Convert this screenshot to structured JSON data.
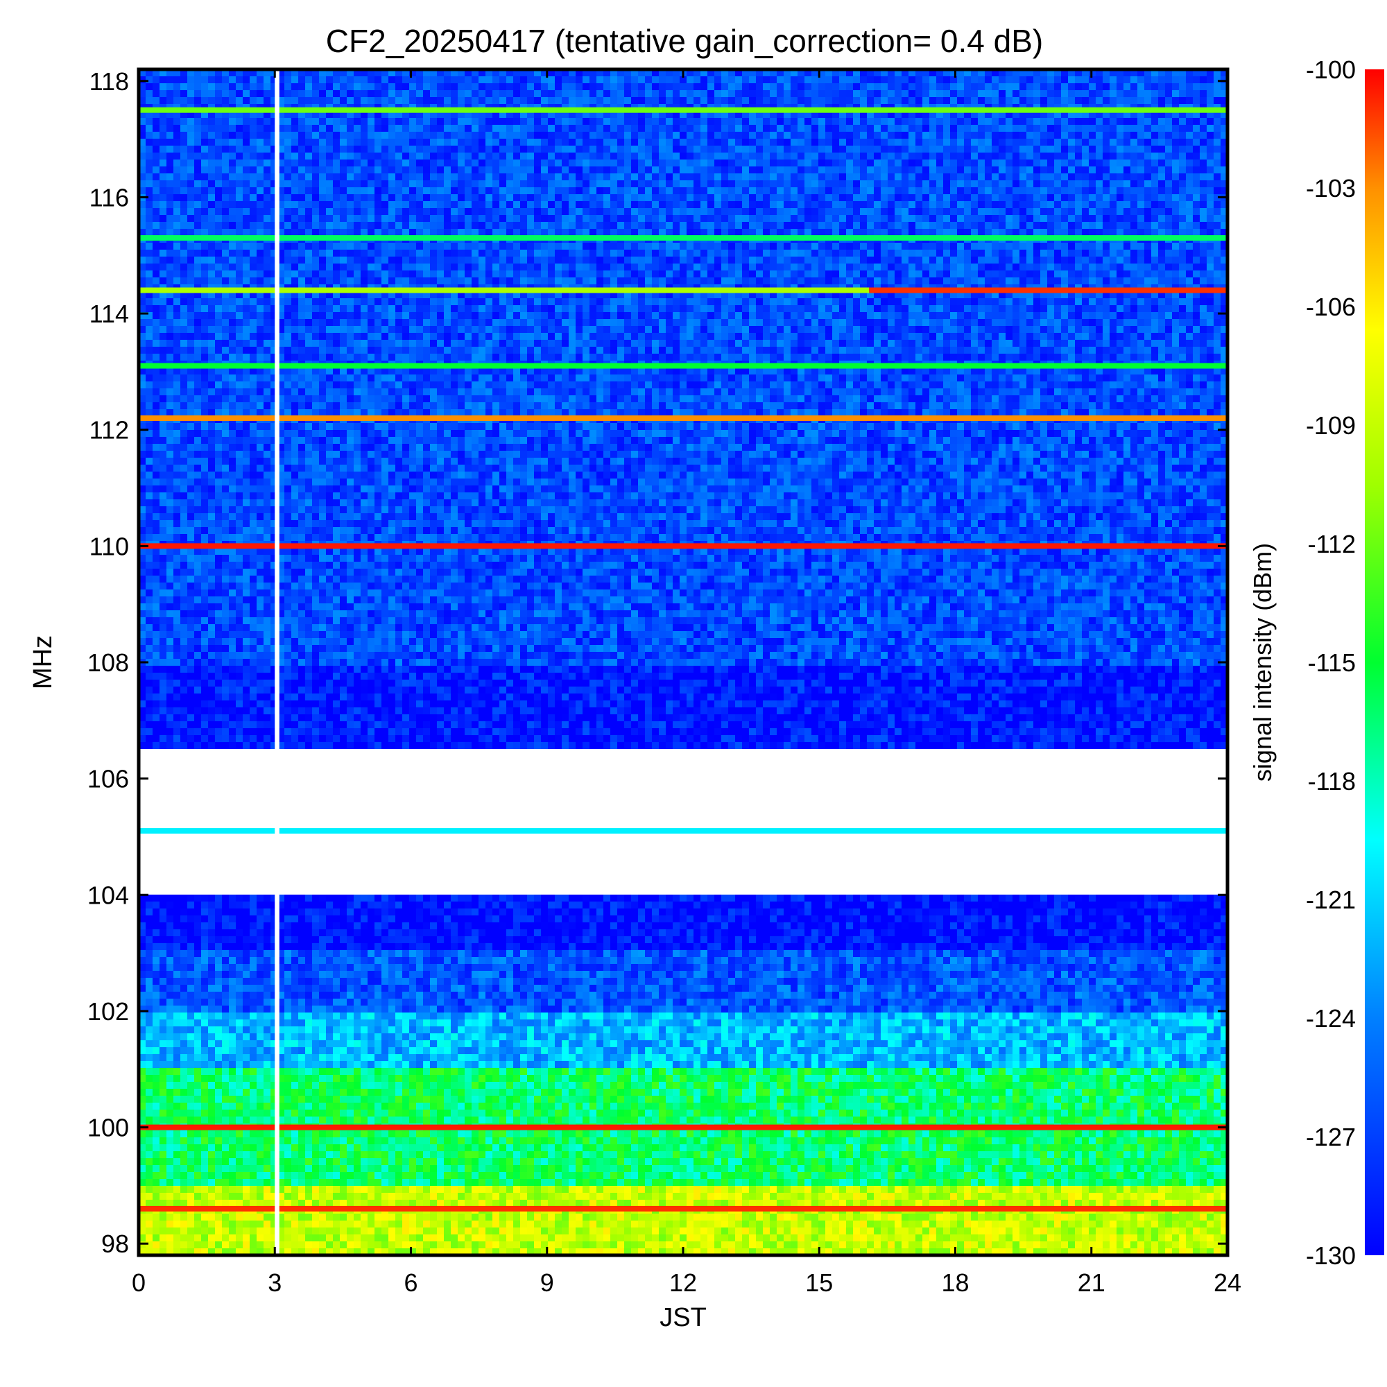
{
  "chart_data": {
    "type": "heatmap",
    "title": "CF2_20250417 (tentative gain_correction=  0.4 dB)",
    "xlabel": "JST",
    "ylabel": "MHz",
    "xlim": [
      0,
      24
    ],
    "ylim": [
      97.8,
      118.2
    ],
    "x_ticks": [
      "0",
      "3",
      "6",
      "9",
      "12",
      "15",
      "18",
      "21",
      "24"
    ],
    "y_ticks": [
      "98",
      "100",
      "102",
      "104",
      "106",
      "108",
      "110",
      "112",
      "114",
      "116",
      "118"
    ],
    "colorbar": {
      "label": "signal intensity (dBm)",
      "range": [
        -130,
        -100
      ],
      "ticks": [
        "-100",
        "-103",
        "-106",
        "-109",
        "-112",
        "-115",
        "-118",
        "-121",
        "-124",
        "-127",
        "-130"
      ],
      "colormap": "rainbow (blue = -130, red = -100)"
    },
    "data_gap_x": [
      3.0,
      3.1
    ],
    "persistent_bands": [
      {
        "freq_mhz": 117.5,
        "dbm": -112
      },
      {
        "freq_mhz": 115.3,
        "dbm": -116
      },
      {
        "freq_mhz": 114.4,
        "dbm": -110,
        "x_start": 16.1,
        "dbm_late": -101
      },
      {
        "freq_mhz": 113.1,
        "dbm": -115
      },
      {
        "freq_mhz": 112.2,
        "dbm": -103
      },
      {
        "freq_mhz": 110.0,
        "dbm": -100.5
      },
      {
        "freq_mhz": 105.1,
        "dbm": -120
      },
      {
        "freq_mhz": 100.0,
        "dbm": -100.5
      },
      {
        "freq_mhz": 98.6,
        "dbm": -101
      }
    ],
    "background_levels": [
      {
        "freq_mhz": [
          108.0,
          118.2
        ],
        "dbm": -126.5
      },
      {
        "freq_mhz": [
          106.5,
          108.0
        ],
        "dbm": -129
      },
      {
        "freq_mhz": [
          104.0,
          106.5
        ],
        "dbm": "below -130 (blank)"
      },
      {
        "freq_mhz": [
          103.0,
          104.0
        ],
        "dbm": -129.5
      },
      {
        "freq_mhz": [
          102.0,
          103.0
        ],
        "dbm": -126
      },
      {
        "freq_mhz": [
          101.0,
          102.0
        ],
        "dbm": -122
      },
      {
        "freq_mhz": [
          99.0,
          101.0
        ],
        "dbm": -116
      },
      {
        "freq_mhz": [
          97.8,
          99.0
        ],
        "dbm": -109
      }
    ]
  },
  "colors": {
    "frame": "#000000",
    "gap": "#ffffff"
  }
}
